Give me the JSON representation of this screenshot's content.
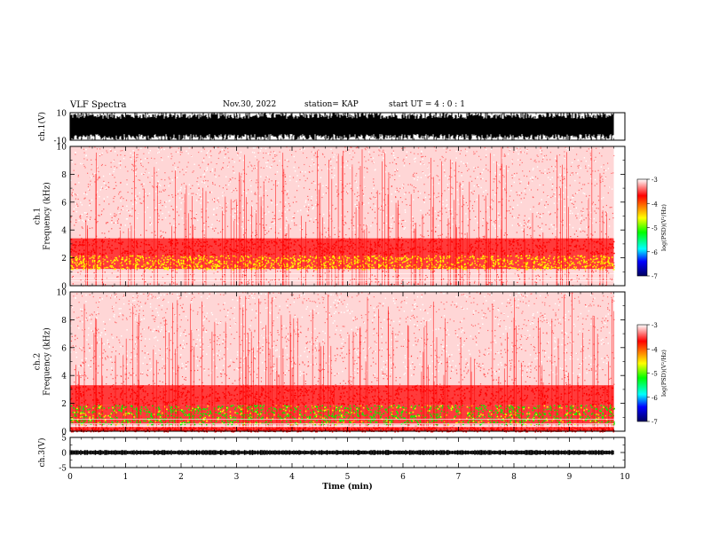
{
  "header": {
    "title": "VLF Spectra",
    "date": "Nov.30, 2022",
    "station": "station= KAP",
    "start": "start  UT =   4 : 0  : 1"
  },
  "chart_data": [
    {
      "type": "line",
      "name": "ch.1 waveform",
      "ylabel": "ch.1(V)",
      "ylim": [
        -10,
        10
      ],
      "yticks": [
        "10",
        "-10"
      ],
      "xlim": [
        0,
        10
      ],
      "note_values": "dense waveform with amplitude saturating near ±10 V for the full 0–9.8 min"
    },
    {
      "type": "heatmap",
      "name": "ch.1 spectrogram",
      "ylabel": "ch.1\nFrequency (kHz)",
      "ylabel_line1": "ch.1",
      "ylabel_line2": "Frequency (kHz)",
      "ylim": [
        0,
        10
      ],
      "yticks": [
        "0",
        "2",
        "4",
        "6",
        "8",
        "10"
      ],
      "xlim": [
        0,
        10
      ],
      "bands": [
        {
          "f_low": 0.0,
          "f_high": 0.4,
          "level": -3.0
        },
        {
          "f_low": 1.2,
          "f_high": 2.2,
          "level": -4.3
        },
        {
          "f_low": 2.2,
          "f_high": 3.4,
          "level": -3.7
        },
        {
          "f_low": 3.4,
          "f_high": 10.0,
          "level": -3.0
        }
      ]
    },
    {
      "type": "heatmap",
      "name": "ch.2 spectrogram",
      "ylabel_line1": "ch.2",
      "ylabel_line2": "Frequency (kHz)",
      "ylim": [
        0,
        10
      ],
      "yticks": [
        "0",
        "2",
        "4",
        "6",
        "8",
        "10"
      ],
      "xlim": [
        0,
        10
      ],
      "bands": [
        {
          "f_low": 0.0,
          "f_high": 0.3,
          "level": -3.5
        },
        {
          "f_low": 0.5,
          "f_high": 1.9,
          "level": -4.8
        },
        {
          "f_low": 1.9,
          "f_high": 3.3,
          "level": -3.9
        },
        {
          "f_low": 3.3,
          "f_high": 10.0,
          "level": -3.1
        }
      ]
    },
    {
      "type": "line",
      "name": "ch.3 waveform",
      "ylabel": "ch.3(V)",
      "ylim": [
        -5,
        5
      ],
      "yticks": [
        "5",
        "0",
        "-5"
      ],
      "xlim": [
        0,
        10
      ],
      "level": 0,
      "note_values": "flat trace near 0 V with small amplitude"
    }
  ],
  "colorbar": {
    "label": "log(PSD)(V²/Hz)",
    "ticks": [
      "-3",
      "-4",
      "-5",
      "-6",
      "-7"
    ],
    "range": [
      -7,
      -3
    ],
    "colors": [
      "#000080",
      "#0000ff",
      "#00ffff",
      "#00ff00",
      "#ffff00",
      "#ff0000",
      "#ffffff"
    ]
  },
  "xaxis": {
    "label": "Time  (min)",
    "ticks": [
      "0",
      "1",
      "2",
      "3",
      "4",
      "5",
      "6",
      "7",
      "8",
      "9",
      "10"
    ],
    "xlim": [
      0,
      10
    ],
    "data_end": 9.8
  }
}
